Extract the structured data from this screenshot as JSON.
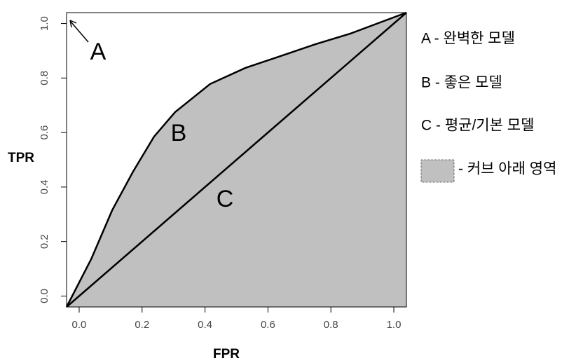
{
  "chart_data": {
    "type": "line",
    "xlabel": "FPR",
    "ylabel": "TPR",
    "xlim": [
      -0.04,
      1.04
    ],
    "ylim": [
      -0.04,
      1.04
    ],
    "xticks": [
      {
        "value": 0,
        "label": "0.0"
      },
      0.2,
      0.4,
      0.6,
      0.8,
      {
        "value": 1,
        "label": "1.0"
      }
    ],
    "yticks": [
      {
        "value": 0,
        "label": "0.0"
      },
      0.2,
      0.4,
      0.6,
      0.8,
      {
        "value": 1,
        "label": "1.0"
      }
    ],
    "fill_color": "#c0c0c0",
    "series": [
      {
        "color": "#000000",
        "x": [
          -0.04,
          0.038,
          0.105,
          0.171,
          0.238,
          0.305,
          0.416,
          0.528,
          0.639,
          0.751,
          0.862,
          1.04
        ],
        "values": [
          -0.04,
          0.135,
          0.315,
          0.456,
          0.585,
          0.675,
          0.778,
          0.837,
          0.88,
          0.924,
          0.963,
          1.04
        ]
      },
      {
        "color": "#000000",
        "x": [
          -0.04,
          1.04
        ],
        "values": [
          -0.04,
          1.04
        ]
      }
    ],
    "annotations": [
      "A",
      "B",
      "C"
    ],
    "legend_entries": [
      "A - 완벽한 모델",
      "B - 좋은 모델",
      "C - 평균/기본 모델",
      "- 커브 아래 영역"
    ]
  }
}
